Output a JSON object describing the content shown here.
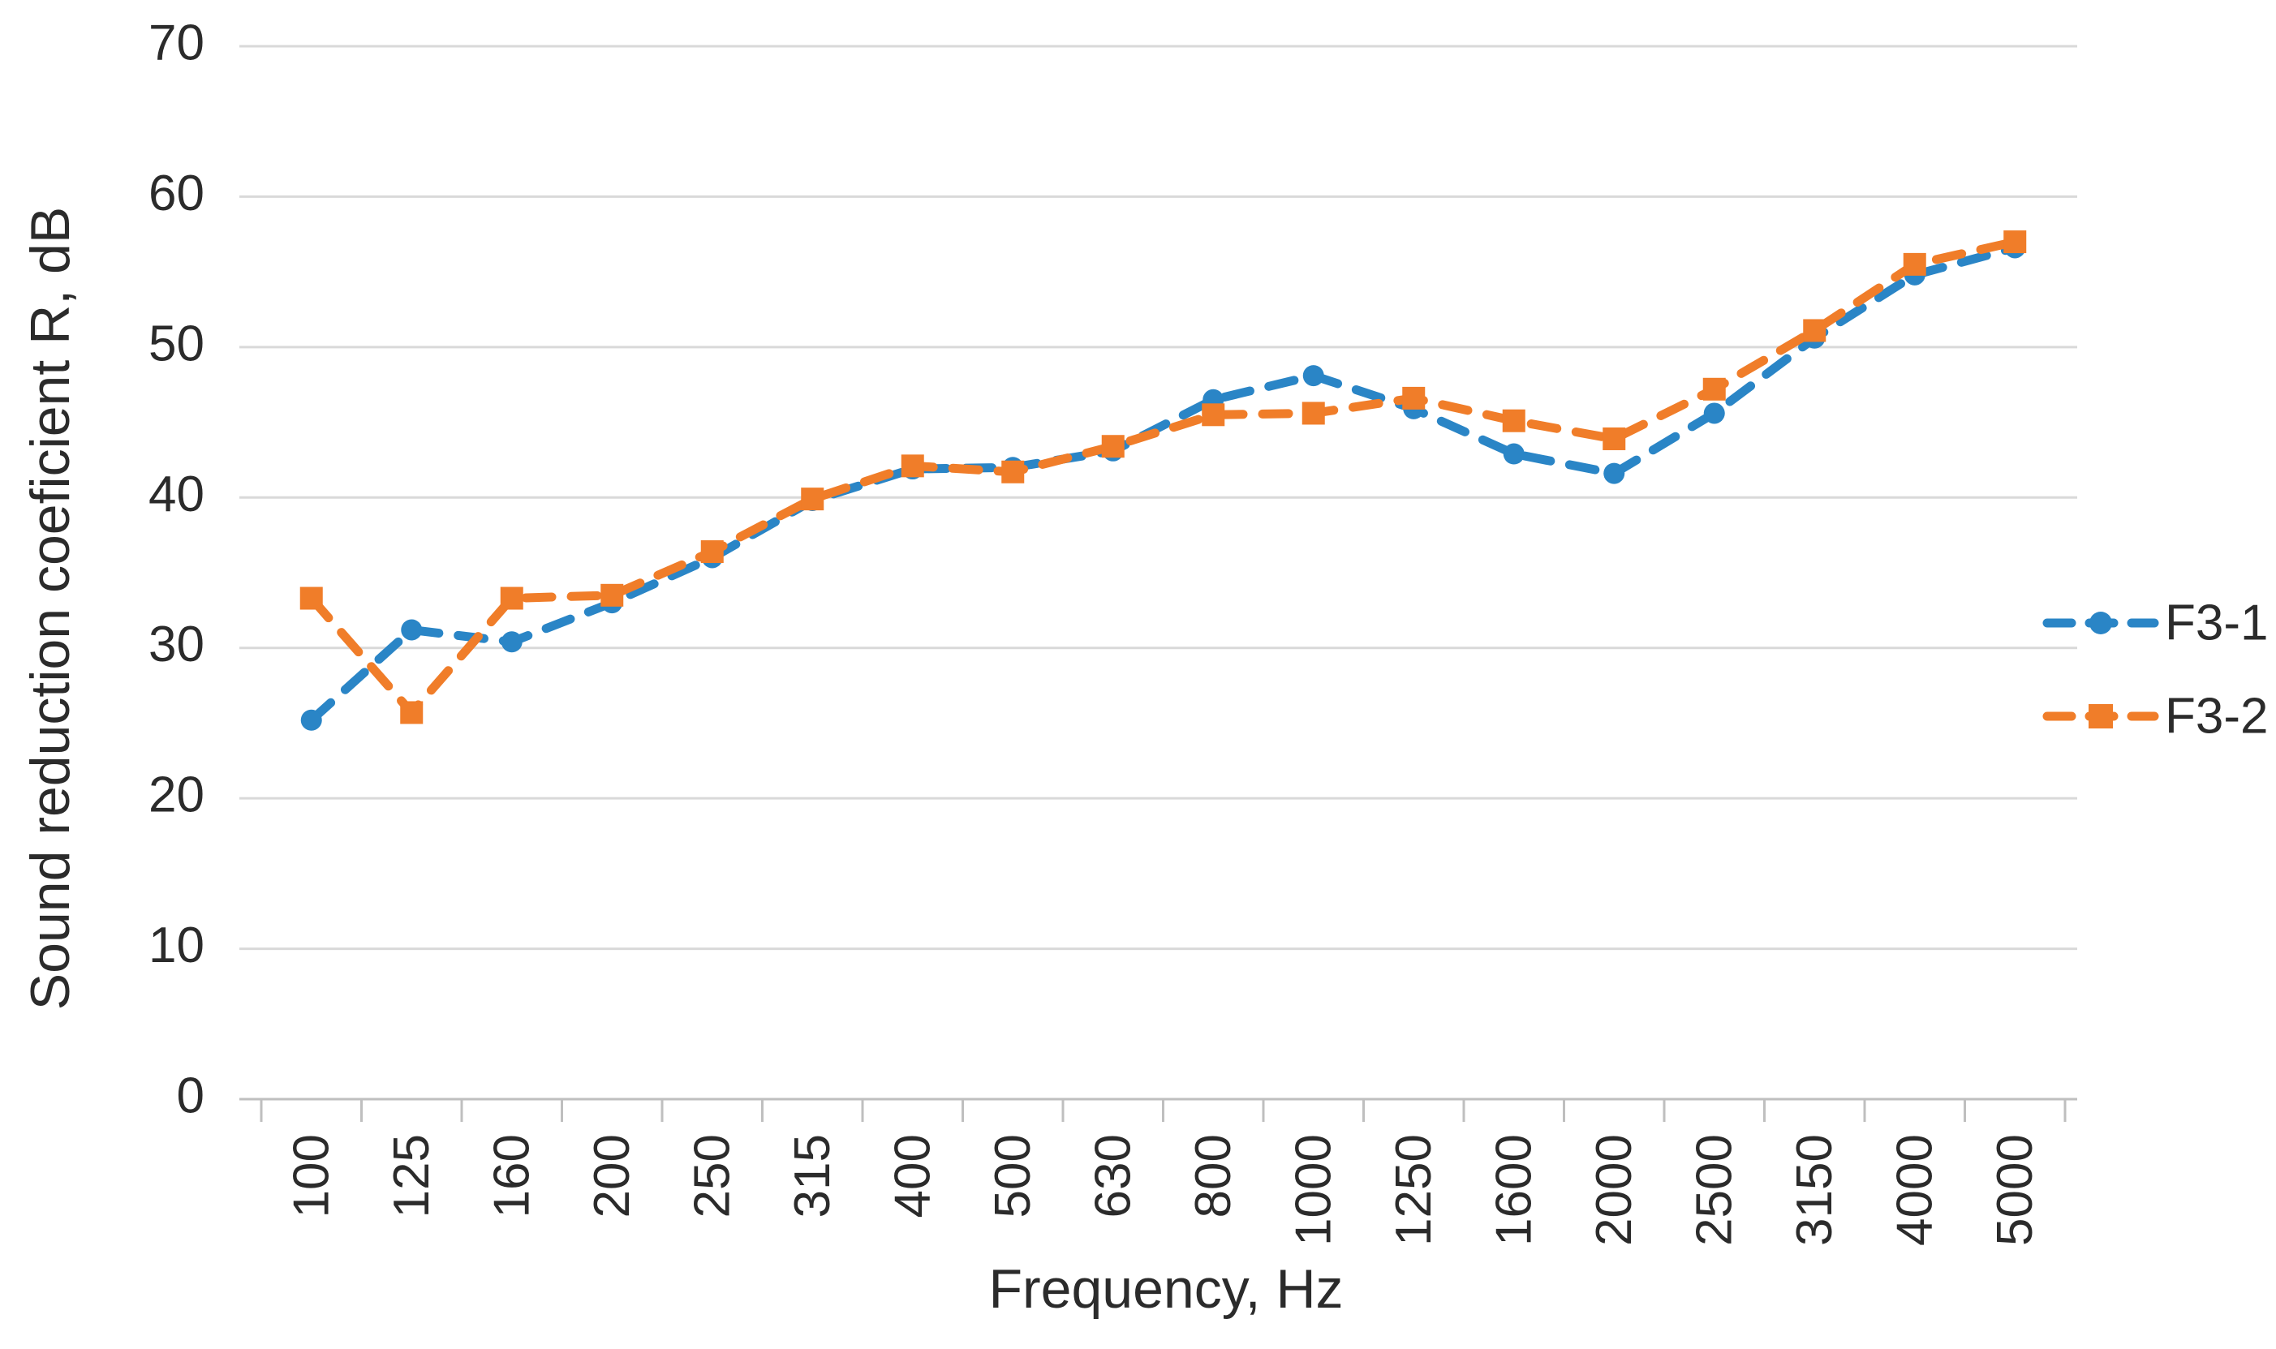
{
  "chart_data": {
    "type": "line",
    "title": "",
    "xlabel": "Frequency, Hz",
    "ylabel": "Sound reduction coeficient R, dB",
    "categories": [
      "100",
      "125",
      "160",
      "200",
      "250",
      "315",
      "400",
      "500",
      "630",
      "800",
      "1000",
      "1250",
      "1600",
      "2000",
      "2500",
      "3150",
      "4000",
      "5000"
    ],
    "series": [
      {
        "name": "F3-1",
        "color": "#2A85C6",
        "marker": "circle",
        "line_style": "dashed",
        "values": [
          25.2,
          31.2,
          30.4,
          33.0,
          36.0,
          39.8,
          41.9,
          42.0,
          43.1,
          46.5,
          48.1,
          45.9,
          42.9,
          41.6,
          45.6,
          50.6,
          54.8,
          56.6
        ]
      },
      {
        "name": "F3-2",
        "color": "#F07D29",
        "marker": "square",
        "line_style": "dashed",
        "values": [
          33.3,
          25.7,
          33.3,
          33.5,
          36.4,
          39.9,
          42.1,
          41.7,
          43.4,
          45.5,
          45.6,
          46.6,
          45.1,
          43.9,
          47.2,
          51.1,
          55.5,
          57.0
        ]
      }
    ],
    "ylim": [
      0,
      70
    ],
    "yticks": [
      "0",
      "10",
      "20",
      "30",
      "40",
      "50",
      "60",
      "70"
    ],
    "grid": "horizontal",
    "legend_position": "right",
    "colors": {
      "grid": "#d9d9d9",
      "axis": "#bfbfbf",
      "text": "#2b2b2b",
      "background": "#ffffff"
    }
  }
}
